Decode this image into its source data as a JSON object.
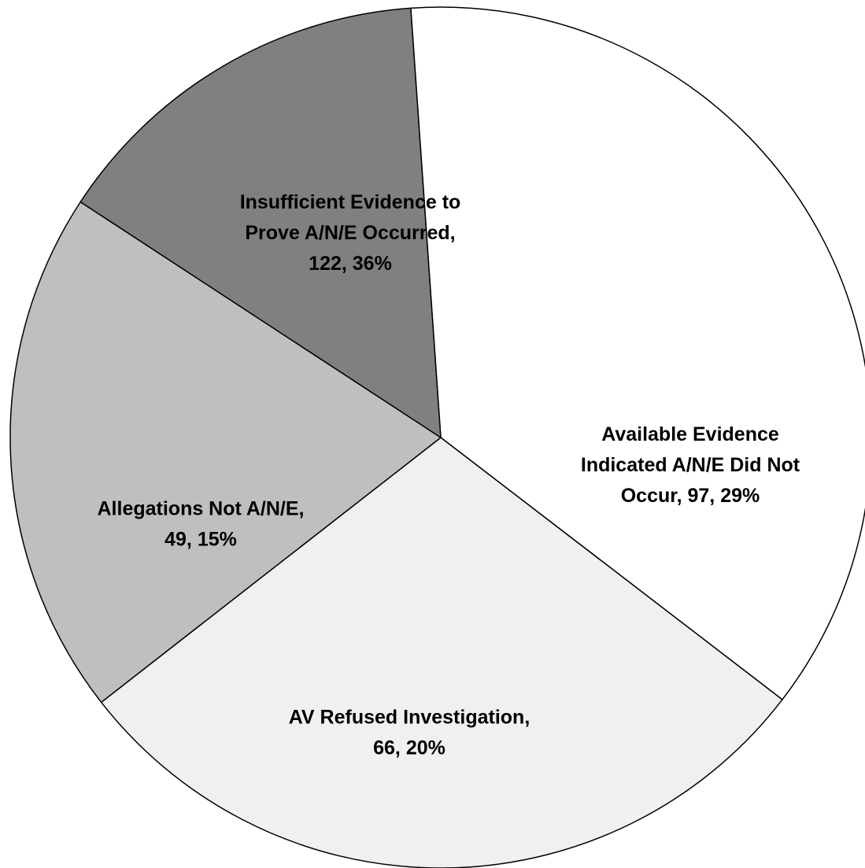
{
  "chart_data": {
    "type": "pie",
    "slices": [
      {
        "name": "Insufficient Evidence to Prove A/N/E Occurred",
        "value": 122,
        "percent": "36%",
        "color": "#ffffff",
        "label_lines": [
          "Insufficient Evidence to",
          "Prove A/N/E Occurred,",
          "122, 36%"
        ]
      },
      {
        "name": "Available Evidence Indicated A/N/E Did Not Occur",
        "value": 97,
        "percent": "29%",
        "color": "#f0f0f0",
        "label_lines": [
          "Available Evidence",
          "Indicated A/N/E Did Not",
          "Occur, 97, 29%"
        ]
      },
      {
        "name": "AV Refused Investigation",
        "value": 66,
        "percent": "20%",
        "color": "#bfbfbf",
        "label_lines": [
          "AV Refused Investigation,",
          "66, 20%"
        ]
      },
      {
        "name": "Allegations Not A/N/E",
        "value": 49,
        "percent": "15%",
        "color": "#808080",
        "label_lines": [
          "Allegations Not A/N/E,",
          "49, 15%"
        ]
      }
    ],
    "start_angle_deg": -94,
    "direction": "clockwise",
    "title": "",
    "legend": "none"
  }
}
